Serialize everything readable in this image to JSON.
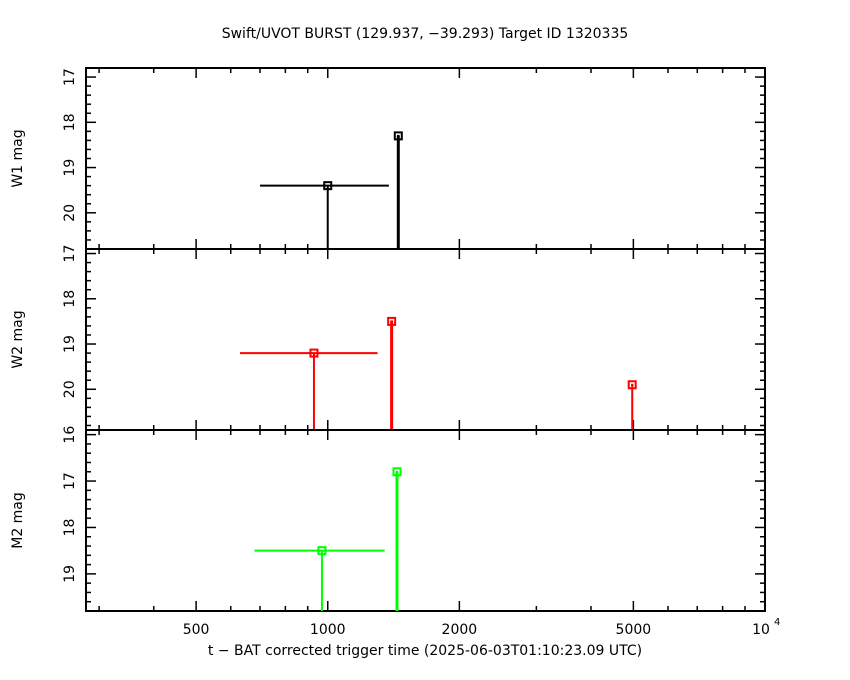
{
  "chart_data": {
    "type": "scatter",
    "title": "Swift/UVOT BURST (129.937, −39.293) Target ID 1320335",
    "xlabel": "t − BAT corrected trigger time (2025-06-03T01:10:23.09 UTC)",
    "x_scale": "log",
    "xlim": [
      280,
      10000
    ],
    "x_ticks": [
      {
        "value": 500,
        "label": "500"
      },
      {
        "value": 1000,
        "label": "1000"
      },
      {
        "value": 2000,
        "label": "2000"
      },
      {
        "value": 5000,
        "label": "5000"
      },
      {
        "value": 10000,
        "label": "10",
        "exponent": "4"
      }
    ],
    "panels": [
      {
        "ylabel": "W1 mag",
        "ylim": [
          20.8,
          16.8
        ],
        "y_ticks": [
          17,
          18,
          19,
          20
        ],
        "color": "#000000",
        "points": [
          {
            "x": 1000,
            "y": 19.4,
            "xerr": [
              700,
              1380
            ],
            "upper_limit": true
          },
          {
            "x": 1450,
            "y": 18.3,
            "xerr": [
              1440,
              1460
            ],
            "upper_limit": true
          }
        ]
      },
      {
        "ylabel": "W2 mag",
        "ylim": [
          20.9,
          16.9
        ],
        "y_ticks": [
          17,
          18,
          19,
          20
        ],
        "color": "#ff0000",
        "points": [
          {
            "x": 930,
            "y": 19.2,
            "xerr": [
              630,
              1300
            ],
            "upper_limit": true
          },
          {
            "x": 1400,
            "y": 18.5,
            "xerr": [
              1390,
              1410
            ],
            "upper_limit": true
          },
          {
            "x": 4970,
            "y": 19.9,
            "xerr": [
              4940,
              5000
            ],
            "upper_limit": true
          }
        ]
      },
      {
        "ylabel": "M2 mag",
        "ylim": [
          19.8,
          15.9
        ],
        "y_ticks": [
          16,
          17,
          18,
          19
        ],
        "color": "#00ff00",
        "points": [
          {
            "x": 970,
            "y": 18.5,
            "xerr": [
              680,
              1350
            ],
            "upper_limit": true
          },
          {
            "x": 1440,
            "y": 16.8,
            "xerr": [
              1430,
              1450
            ],
            "upper_limit": true
          }
        ]
      }
    ]
  }
}
